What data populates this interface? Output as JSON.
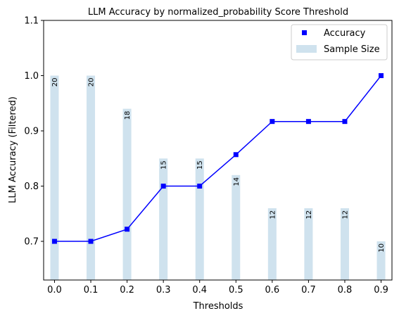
{
  "chart_data": {
    "type": "bar",
    "title": "LLM Accuracy by normalized_probability Score Threshold",
    "xlabel": "Thresholds",
    "ylabel": "LLM Accuracy (Filtered)",
    "categories": [
      "0.0",
      "0.1",
      "0.2",
      "0.3",
      "0.4",
      "0.5",
      "0.6",
      "0.7",
      "0.8",
      "0.9"
    ],
    "x": [
      0.0,
      0.1,
      0.2,
      0.3,
      0.4,
      0.5,
      0.6,
      0.7,
      0.8,
      0.9
    ],
    "xlim": [
      -0.03,
      0.93
    ],
    "ylim": [
      0.63,
      1.1
    ],
    "yticks": [
      "0.7",
      "0.8",
      "0.9",
      "1.0",
      "1.1"
    ],
    "ytick_values": [
      0.7,
      0.8,
      0.9,
      1.0,
      1.1
    ],
    "grid": false,
    "legend_position": "top-right",
    "series": [
      {
        "name": "Accuracy",
        "type": "line-with-square-markers",
        "color": "#0000ff",
        "values": [
          0.7,
          0.7,
          0.722,
          0.8,
          0.8,
          0.857,
          0.917,
          0.917,
          0.917,
          1.0
        ]
      },
      {
        "name": "Sample Size",
        "type": "bar",
        "color": "#cfe2ee",
        "values": [
          1.0,
          1.0,
          0.94,
          0.85,
          0.85,
          0.82,
          0.76,
          0.76,
          0.76,
          0.7
        ],
        "labels": [
          "20",
          "20",
          "18",
          "15",
          "15",
          "14",
          "12",
          "12",
          "12",
          "10"
        ]
      }
    ]
  }
}
